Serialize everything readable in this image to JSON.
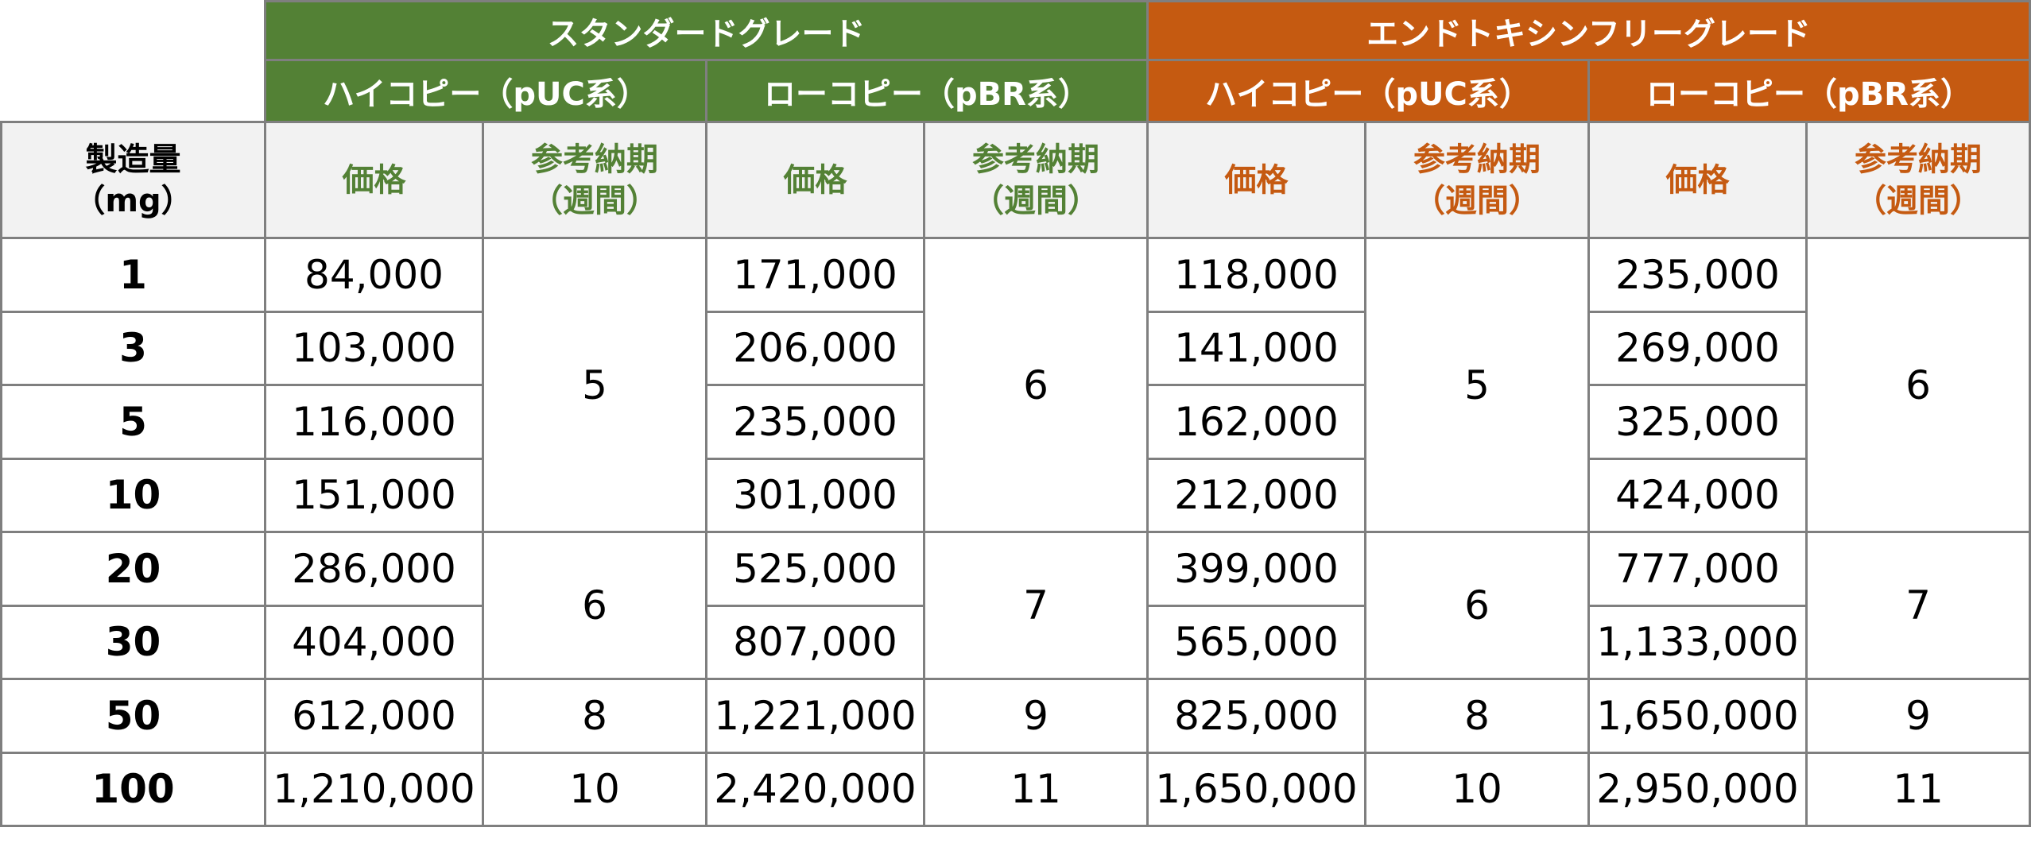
{
  "grades": [
    {
      "label": "スタンダードグレード",
      "color": "#538135",
      "subgroups": [
        {
          "label": "ハイコピー（pUC系）"
        },
        {
          "label": "ローコピー（pBR系）"
        }
      ]
    },
    {
      "label": "エンドトキシンフリーグレード",
      "color": "#c55a11",
      "subgroups": [
        {
          "label": "ハイコピー（pUC系）"
        },
        {
          "label": "ローコピー（pBR系）"
        }
      ]
    }
  ],
  "headers": {
    "qty_line1": "製造量",
    "qty_line2": "（mg）",
    "price": "価格",
    "lead_line1": "参考納期",
    "lead_line2": "（週間）"
  },
  "quantities": [
    "1",
    "3",
    "5",
    "10",
    "20",
    "30",
    "50",
    "100"
  ],
  "prices": {
    "std_puc": [
      "84,000",
      "103,000",
      "116,000",
      "151,000",
      "286,000",
      "404,000",
      "612,000",
      "1,210,000"
    ],
    "std_pbr": [
      "171,000",
      "206,000",
      "235,000",
      "301,000",
      "525,000",
      "807,000",
      "1,221,000",
      "2,420,000"
    ],
    "edf_puc": [
      "118,000",
      "141,000",
      "162,000",
      "212,000",
      "399,000",
      "565,000",
      "825,000",
      "1,650,000"
    ],
    "edf_pbr": [
      "235,000",
      "269,000",
      "325,000",
      "424,000",
      "777,000",
      "1,133,000",
      "1,650,000",
      "2,950,000"
    ]
  },
  "lead_times": {
    "std_puc": [
      "5",
      "6",
      "8",
      "10"
    ],
    "std_pbr": [
      "6",
      "7",
      "9",
      "11"
    ],
    "edf_puc": [
      "5",
      "6",
      "8",
      "10"
    ],
    "edf_pbr": [
      "6",
      "7",
      "9",
      "11"
    ]
  }
}
